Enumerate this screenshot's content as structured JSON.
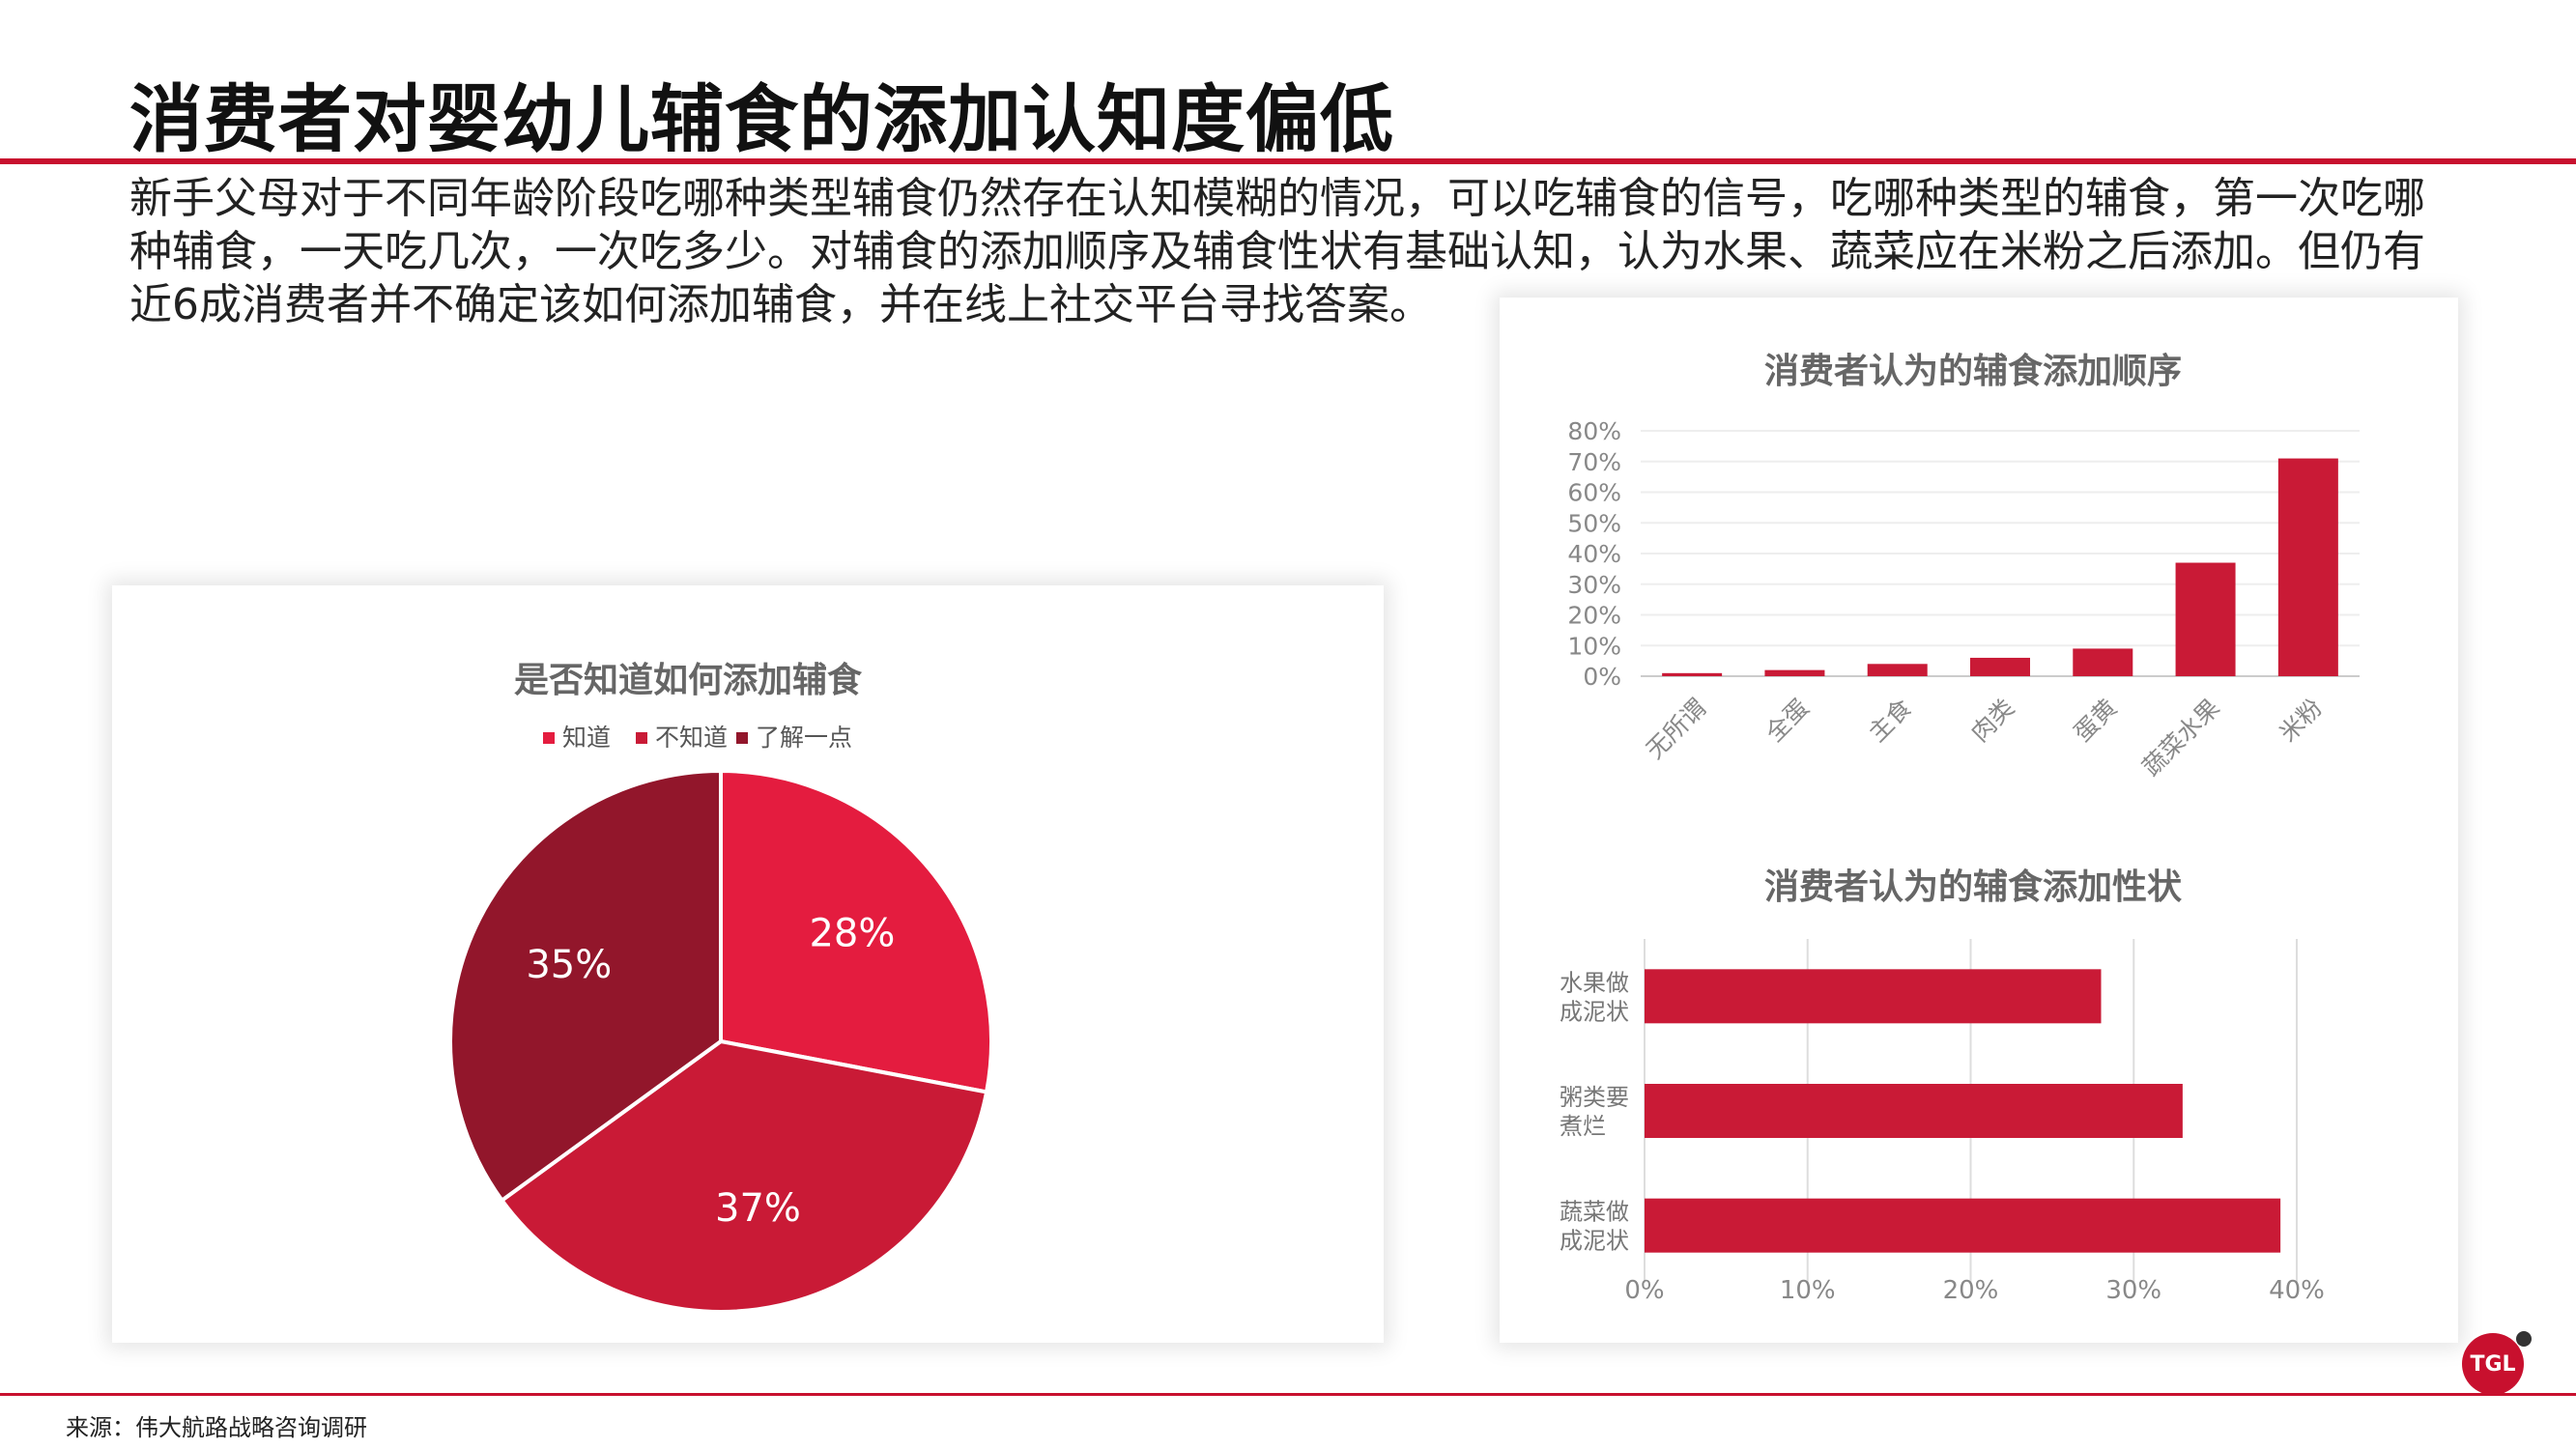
{
  "page": {
    "title": "消费者对婴幼儿辅食的添加认知度偏低",
    "description": "新手父母对于不同年龄阶段吃哪种类型辅食仍然存在认知模糊的情况，可以吃辅食的信号，吃哪种类型的辅食，第一次吃哪种辅食，一天吃几次，一次吃多少。对辅食的添加顺序及辅食性状有基础认知，认为水果、蔬菜应在米粉之后添加。但仍有近6成消费者并不确定该如何添加辅食，并在线上社交平台寻找答案。",
    "source": "来源：伟大航路战略咨询调研",
    "logo_text": "TGL",
    "accent_color": "#c8102e"
  },
  "chart_data": [
    {
      "type": "pie",
      "title": "是否知道如何添加辅食",
      "legend_position": "top",
      "categories": [
        "知道",
        "不知道",
        "了解一点"
      ],
      "values": [
        28,
        37,
        35
      ],
      "labels": [
        "28%",
        "37%",
        "35%"
      ],
      "colors": [
        "#e41c3f",
        "#c91a36",
        "#92162b"
      ]
    },
    {
      "type": "bar",
      "title": "消费者认为的辅食添加顺序",
      "categories": [
        "无所谓",
        "全蛋",
        "主食",
        "肉类",
        "蛋黄",
        "蔬菜水果",
        "米粉"
      ],
      "values": [
        1,
        2,
        4,
        6,
        9,
        37,
        71
      ],
      "ylim": [
        0,
        80
      ],
      "yticks": [
        "0%",
        "10%",
        "20%",
        "30%",
        "40%",
        "50%",
        "60%",
        "70%",
        "80%"
      ],
      "grid": true,
      "color": "#c91a36"
    },
    {
      "type": "bar",
      "orientation": "horizontal",
      "title": "消费者认为的辅食添加性状",
      "categories": [
        [
          "水果做",
          "成泥状"
        ],
        [
          "粥类要",
          "煮烂"
        ],
        [
          "蔬菜做",
          "成泥状"
        ]
      ],
      "values": [
        28,
        33,
        39
      ],
      "xlim": [
        0,
        40
      ],
      "xticks": [
        "0%",
        "10%",
        "20%",
        "30%",
        "40%"
      ],
      "grid": true,
      "color": "#c91a36"
    }
  ]
}
